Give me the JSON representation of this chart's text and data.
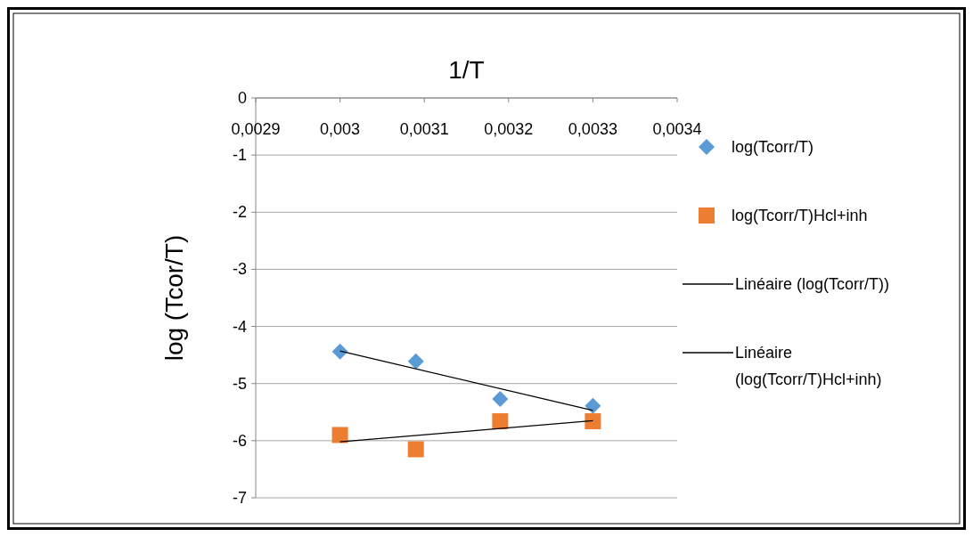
{
  "chart_data": {
    "type": "scatter",
    "xlabel": "1/T",
    "ylabel": "log (Tcor/T)",
    "xlim": [
      0.0029,
      0.0034
    ],
    "xticks": [
      {
        "value": 0.0029,
        "label": "0,0029"
      },
      {
        "value": 0.003,
        "label": "0,003"
      },
      {
        "value": 0.0031,
        "label": "0,0031"
      },
      {
        "value": 0.0032,
        "label": "0,0032"
      },
      {
        "value": 0.0033,
        "label": "0,0033"
      },
      {
        "value": 0.0034,
        "label": "0,0034"
      }
    ],
    "ylim": [
      -7,
      0
    ],
    "yticks": [
      -7,
      -6,
      -5,
      -4,
      -3,
      -2,
      -1,
      0
    ],
    "grid": "y",
    "legend": "right",
    "series": [
      {
        "name": "log(Tcorr/T)",
        "marker": "diamond",
        "color": "#5b9bd5",
        "x": [
          0.003,
          0.00309,
          0.00319,
          0.0033
        ],
        "values": [
          -4.44,
          -4.61,
          -5.27,
          -5.39
        ]
      },
      {
        "name": "log(Tcorr/T)Hcl+inh",
        "marker": "square",
        "color": "#ed7d31",
        "x": [
          0.003,
          0.00309,
          0.00319,
          0.0033
        ],
        "values": [
          -5.9,
          -6.15,
          -5.66,
          -5.66
        ]
      },
      {
        "name": "Linéaire (log(Tcorr/T))",
        "type": "line",
        "color": "#000000",
        "x": [
          0.003,
          0.0033
        ],
        "values": [
          -4.43,
          -5.47
        ]
      },
      {
        "name": "Linéaire (log(Tcorr/T)Hcl+inh)",
        "type": "line",
        "color": "#000000",
        "x": [
          0.003,
          0.0033
        ],
        "values": [
          -6.02,
          -5.65
        ]
      }
    ]
  }
}
